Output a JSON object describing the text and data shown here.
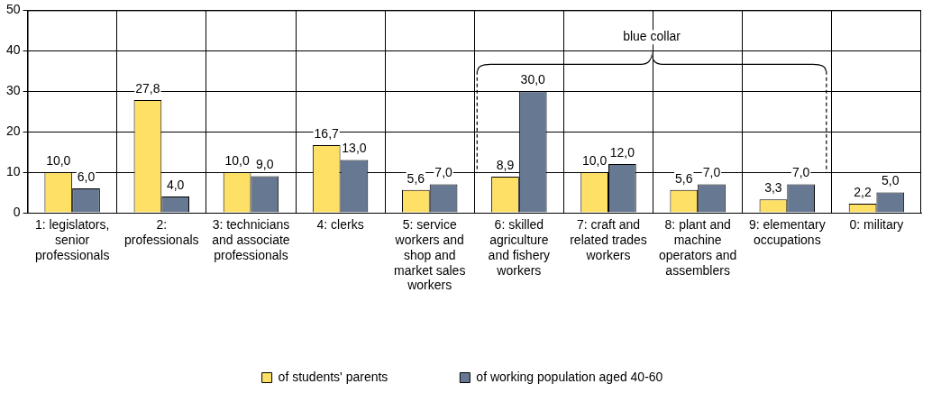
{
  "chart_data": {
    "type": "bar",
    "categories": [
      "1: legislators, senior professionals",
      "2: professionals",
      "3: technicians and associate professionals",
      "4: clerks",
      "5: service workers and shop and market sales workers",
      "6: skilled agriculture and fishery workers",
      "7: craft and related trades workers",
      "8: plant and machine operators and assemblers",
      "9: elementary occupations",
      "0: military"
    ],
    "series": [
      {
        "name": "of students' parents",
        "color": "#ffe066",
        "values": [
          10.0,
          27.8,
          10.0,
          16.7,
          5.6,
          8.9,
          10.0,
          5.6,
          3.3,
          2.2
        ],
        "value_labels": [
          "10,0",
          "27,8",
          "10,0",
          "16,7",
          "5,6",
          "8,9",
          "10,0",
          "5,6",
          "3,3",
          "2,2"
        ]
      },
      {
        "name": "of working population aged 40-60",
        "color": "#667892",
        "values": [
          6.0,
          4.0,
          9.0,
          13.0,
          7.0,
          30.0,
          12.0,
          7.0,
          7.0,
          5.0
        ],
        "value_labels": [
          "6,0",
          "4,0",
          "9,0",
          "13,0",
          "7,0",
          "30,0",
          "12,0",
          "7,0",
          "7,0",
          "5,0"
        ]
      }
    ],
    "ylim": [
      0,
      50
    ],
    "yticks": [
      0,
      10,
      20,
      30,
      40,
      50
    ],
    "grid": true,
    "legend": "bottom",
    "annotations": [
      "blue collar"
    ]
  }
}
